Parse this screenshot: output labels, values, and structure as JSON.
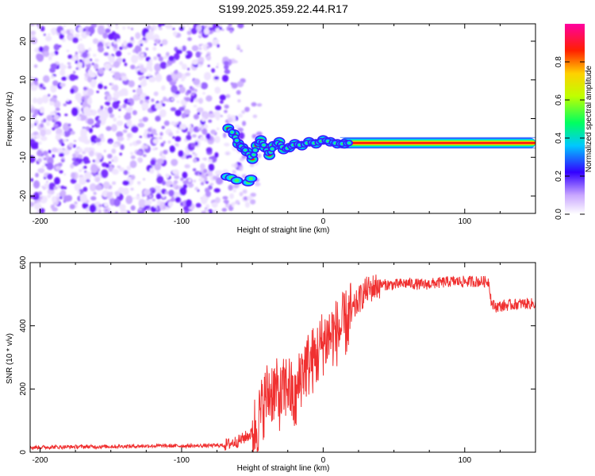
{
  "title": "S199.2025.359.22.44.R17",
  "chart_data": [
    {
      "type": "heatmap",
      "xlabel": "Height of straight line (km)",
      "ylabel": "Frequency (Hz)",
      "xlim": [
        -207,
        150
      ],
      "ylim": [
        -24.5,
        24.5
      ],
      "xticks": [
        -200,
        -100,
        0,
        100
      ],
      "yticks": [
        -20,
        -10,
        0,
        10,
        20
      ],
      "description_trace": {
        "x": [
          -67,
          -63,
          -60,
          -57,
          -54,
          -50,
          -47,
          -44,
          -41,
          -38,
          -35,
          -31,
          -28,
          -24,
          -20,
          -15,
          -10,
          -5,
          0,
          5,
          10,
          15,
          20,
          30,
          40,
          60,
          80,
          100,
          120,
          150
        ],
        "y": [
          -2.5,
          -4.0,
          -6.5,
          -7.5,
          -8.5,
          -10.5,
          -7.0,
          -5.5,
          -7.5,
          -9.5,
          -7.0,
          -6.0,
          -8.0,
          -7.5,
          -6.5,
          -7.0,
          -6.0,
          -6.5,
          -5.5,
          -6.0,
          -6.5,
          -6.5,
          -6.2,
          -6.2,
          -6.3,
          -6.3,
          -6.3,
          -6.3,
          -6.3,
          -6.3
        ]
      },
      "noise_region_x": [
        -207,
        -70
      ],
      "colorbar": {
        "label": "Normalized spectral amplitude",
        "ticks": [
          0.0,
          0.2,
          0.4,
          0.6,
          0.8
        ],
        "range": [
          0,
          1
        ]
      }
    },
    {
      "type": "line",
      "xlabel": "Height of straight line (km)",
      "ylabel": "SNR (10 * v/v)",
      "xlim": [
        -207,
        150
      ],
      "ylim": [
        0,
        600
      ],
      "xticks": [
        -200,
        -100,
        0,
        100
      ],
      "yticks": [
        0,
        200,
        400,
        600
      ],
      "series": [
        {
          "name": "SNR",
          "color": "#f03030",
          "x": [
            -207,
            -180,
            -150,
            -120,
            -90,
            -70,
            -60,
            -50,
            -45,
            -40,
            -35,
            -30,
            -25,
            -20,
            -15,
            -10,
            -5,
            0,
            5,
            10,
            15,
            20,
            25,
            30,
            35,
            40,
            50,
            60,
            70,
            80,
            90,
            100,
            110,
            117,
            119,
            122,
            130,
            140,
            150
          ],
          "y": [
            15,
            17,
            18,
            20,
            20,
            22,
            35,
            60,
            110,
            180,
            200,
            170,
            220,
            150,
            260,
            280,
            300,
            350,
            370,
            380,
            400,
            440,
            480,
            510,
            520,
            530,
            530,
            535,
            530,
            535,
            540,
            540,
            540,
            540,
            470,
            460,
            465,
            470,
            470
          ]
        }
      ]
    }
  ]
}
